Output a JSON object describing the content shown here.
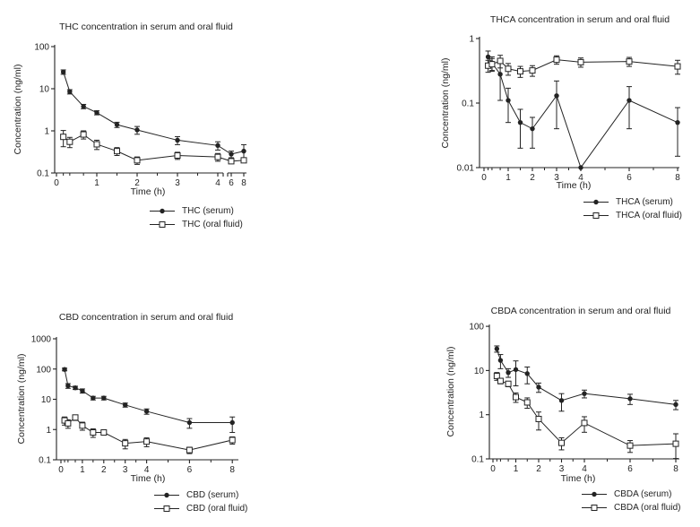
{
  "page": {
    "ink_color": "#232323",
    "background_color": "#ffffff"
  },
  "chart_data": [
    {
      "type": "line",
      "title": "THC concentration in serum and oral fluid",
      "xlabel": "Time (h)",
      "ylabel": "Concentration (ng/ml)",
      "y_scale": "log",
      "ylim": [
        0.1,
        100
      ],
      "yticks": [
        "0.1",
        "1",
        "10",
        "100"
      ],
      "xticks": [
        "0",
        "1",
        "2",
        "3",
        "4",
        "6",
        "8"
      ],
      "x_axis_break_between": [
        4,
        6
      ],
      "legend_position": "bottom",
      "x": [
        0.17,
        0.33,
        0.67,
        1,
        1.5,
        2,
        3,
        4,
        6,
        8
      ],
      "series": [
        {
          "name": "THC (serum)",
          "marker": "filled-circle",
          "values": [
            25,
            8.5,
            3.8,
            2.7,
            1.4,
            1.05,
            0.6,
            0.45,
            0.28,
            0.33
          ],
          "errors": [
            3,
            1,
            0.45,
            0.3,
            0.2,
            0.22,
            0.13,
            0.1,
            0.05,
            0.14
          ]
        },
        {
          "name": "THC (oral fluid)",
          "marker": "open-square",
          "values": [
            0.72,
            0.55,
            0.82,
            0.48,
            0.33,
            0.2,
            0.26,
            0.24,
            0.19,
            0.2
          ],
          "errors": [
            0.3,
            0.15,
            0.18,
            0.12,
            0.07,
            0.04,
            0.05,
            0.05,
            0.02,
            0.02
          ]
        }
      ]
    },
    {
      "type": "line",
      "title": "THCA concentration in serum and oral fluid",
      "xlabel": "Time (h)",
      "ylabel": "Concentration (ng/ml)",
      "y_scale": "log",
      "ylim": [
        0.01,
        1
      ],
      "yticks": [
        "0.01",
        "0.1",
        "1"
      ],
      "xticks": [
        "0",
        "1",
        "2",
        "3",
        "4",
        "6",
        "8"
      ],
      "x_axis_break_between": null,
      "legend_position": "bottom",
      "x": [
        0.17,
        0.33,
        0.67,
        1,
        1.5,
        2,
        3,
        4,
        6,
        8
      ],
      "series": [
        {
          "name": "THCA (serum)",
          "marker": "filled-circle",
          "values": [
            0.52,
            0.42,
            0.28,
            0.11,
            0.05,
            0.04,
            0.13,
            0.01,
            0.11,
            0.05
          ],
          "errors": [
            0.12,
            0.1,
            0.17,
            0.06,
            0.03,
            0.02,
            0.09,
            0,
            0.07,
            0.035
          ]
        },
        {
          "name": "THCA (oral fluid)",
          "marker": "open-square",
          "values": [
            0.38,
            0.4,
            0.45,
            0.34,
            0.31,
            0.32,
            0.47,
            0.43,
            0.44,
            0.37
          ],
          "errors": [
            0.08,
            0.09,
            0.1,
            0.07,
            0.06,
            0.06,
            0.07,
            0.07,
            0.07,
            0.09
          ]
        }
      ]
    },
    {
      "type": "line",
      "title": "CBD concentration in serum and oral fluid",
      "xlabel": "Time (h)",
      "ylabel": "Concentration (ng/ml)",
      "y_scale": "log",
      "ylim": [
        0.1,
        1000
      ],
      "yticks": [
        "0.1",
        "1",
        "10",
        "100",
        "1000"
      ],
      "xticks": [
        "0",
        "1",
        "2",
        "3",
        "4",
        "6",
        "8"
      ],
      "x_axis_break_between": null,
      "legend_position": "bottom",
      "x": [
        0.17,
        0.33,
        0.67,
        1,
        1.5,
        2,
        3,
        4,
        6,
        8
      ],
      "series": [
        {
          "name": "CBD (serum)",
          "marker": "filled-circle",
          "values": [
            97,
            28,
            24,
            19,
            11,
            11,
            6.5,
            4,
            1.7,
            1.7
          ],
          "errors": [
            10,
            5,
            3,
            3,
            1.5,
            1.5,
            1,
            0.8,
            0.6,
            0.9
          ]
        },
        {
          "name": "CBD (oral fluid)",
          "marker": "open-square",
          "values": [
            2,
            1.6,
            2.5,
            1.35,
            0.8,
            0.8,
            0.35,
            0.4,
            0.21,
            0.45
          ],
          "errors": [
            0.6,
            0.5,
            0.5,
            0.4,
            0.25,
            0.1,
            0.12,
            0.13,
            0.05,
            0.12
          ]
        }
      ]
    },
    {
      "type": "line",
      "title": "CBDA concentration in serum and oral fluid",
      "xlabel": "Time (h)",
      "ylabel": "Concentration (ng/ml)",
      "y_scale": "log",
      "ylim": [
        0.1,
        100
      ],
      "yticks": [
        "0.1",
        "1",
        "10",
        "100"
      ],
      "xticks": [
        "0",
        "1",
        "2",
        "3",
        "4",
        "6",
        "8"
      ],
      "x_axis_break_between": null,
      "legend_position": "bottom",
      "x": [
        0.17,
        0.33,
        0.67,
        1,
        1.5,
        2,
        3,
        4,
        6,
        8
      ],
      "series": [
        {
          "name": "CBDA (serum)",
          "marker": "filled-circle",
          "values": [
            31,
            17,
            9,
            10.5,
            8.5,
            4.2,
            2.1,
            3,
            2.3,
            1.7
          ],
          "errors": [
            5,
            6,
            2,
            6,
            3.5,
            1,
            0.9,
            0.6,
            0.6,
            0.4
          ]
        },
        {
          "name": "CBDA (oral fluid)",
          "marker": "open-square",
          "values": [
            7.5,
            5.8,
            5,
            2.5,
            1.9,
            0.8,
            0.23,
            0.65,
            0.2,
            0.22
          ],
          "errors": [
            1.5,
            0.8,
            0.7,
            0.6,
            0.5,
            0.35,
            0.07,
            0.25,
            0.06,
            0.15
          ]
        }
      ]
    }
  ]
}
